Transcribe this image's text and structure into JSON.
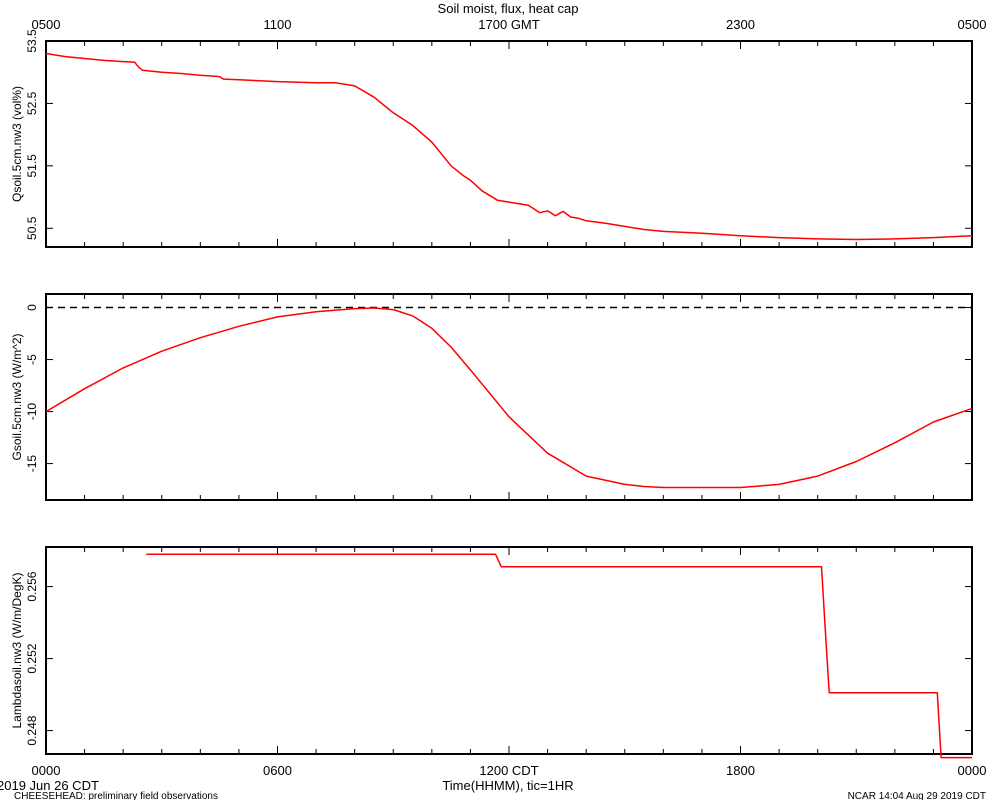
{
  "figure": {
    "title": "Soil moist, flux, heat cap",
    "top_ticks": [
      "0500",
      "1100",
      "1700 GMT",
      "2300",
      "0500"
    ],
    "bottom_ticks": [
      "0000",
      "0600",
      "1200 CDT",
      "1800",
      "0000"
    ],
    "xlabel": "Time(HHMM), tic=1HR",
    "date_label": "2019 Jun 26 CDT",
    "footer_left": "CHEESEHEAD: preliminary field observations",
    "footer_right": "NCAR 14:04 Aug 29 2019 CDT",
    "line_color": "#ff0000",
    "zero_line_color": "#000000"
  },
  "chart_data": [
    {
      "type": "line",
      "ylabel": "Qsoil.5cm.nw3 (vol%)",
      "x_unit": "hours since 0000 CDT",
      "xlim": [
        0,
        24
      ],
      "ylim": [
        50.2,
        53.5
      ],
      "yticks": [
        "50.5",
        "51.5",
        "52.5",
        "53.5"
      ],
      "series": [
        {
          "x": [
            0,
            0.2,
            0.5,
            1,
            1.5,
            2,
            2.3,
            2.4,
            2.5,
            3,
            3.5,
            4,
            4.5,
            4.6,
            5,
            6,
            7,
            7.5,
            8,
            8.5,
            9,
            9.5,
            10,
            10.5,
            10.8,
            11,
            11.3,
            11.7,
            12,
            12.5,
            12.8,
            13,
            13.2,
            13.4,
            13.6,
            13.8,
            14,
            14.5,
            15,
            15.5,
            16,
            17,
            18,
            19,
            20,
            21,
            22,
            23,
            24
          ],
          "values": [
            53.3,
            53.28,
            53.25,
            53.22,
            53.19,
            53.17,
            53.16,
            53.08,
            53.03,
            53.0,
            52.98,
            52.95,
            52.93,
            52.89,
            52.88,
            52.85,
            52.83,
            52.83,
            52.78,
            52.6,
            52.35,
            52.15,
            51.88,
            51.5,
            51.35,
            51.27,
            51.1,
            50.95,
            50.92,
            50.87,
            50.75,
            50.78,
            50.7,
            50.77,
            50.68,
            50.66,
            50.62,
            50.58,
            50.53,
            50.48,
            50.45,
            50.42,
            50.38,
            50.35,
            50.33,
            50.32,
            50.33,
            50.35,
            50.38
          ]
        }
      ]
    },
    {
      "type": "line",
      "ylabel": "Gsoil.5cm.nw3 (W/m^2)",
      "x_unit": "hours since 0000 CDT",
      "xlim": [
        0,
        24
      ],
      "ylim": [
        -18.5,
        1.3
      ],
      "yticks": [
        "0",
        "-5",
        "-10",
        "-15"
      ],
      "reference_line": 0,
      "series": [
        {
          "x": [
            0,
            1,
            2,
            3,
            4,
            5,
            6,
            7,
            8,
            8.5,
            9,
            9.5,
            10,
            10.5,
            11,
            12,
            13,
            14,
            15,
            15.5,
            16,
            17,
            18,
            19,
            20,
            21,
            22,
            23,
            24
          ],
          "values": [
            -10.0,
            -7.8,
            -5.8,
            -4.2,
            -2.9,
            -1.8,
            -0.9,
            -0.4,
            -0.1,
            -0.05,
            -0.2,
            -0.8,
            -2.0,
            -3.8,
            -6.0,
            -10.5,
            -14.0,
            -16.2,
            -17.0,
            -17.2,
            -17.3,
            -17.3,
            -17.3,
            -17.0,
            -16.2,
            -14.8,
            -13.0,
            -11.0,
            -9.7
          ]
        }
      ]
    },
    {
      "type": "line",
      "ylabel": "Lambdasoil.nw3 (W/m/DegK)",
      "x_unit": "hours since 0000 CDT",
      "xlim": [
        0,
        24
      ],
      "ylim": [
        0.2467,
        0.2582
      ],
      "yticks": [
        "0.248",
        "0.252",
        "0.256"
      ],
      "series": [
        {
          "x": [
            2.6,
            11.65,
            11.8,
            20.1,
            20.2,
            20.3,
            23.1,
            23.2,
            24
          ],
          "values": [
            0.2578,
            0.2578,
            0.2571,
            0.2571,
            0.2535,
            0.2501,
            0.2501,
            0.2465,
            0.2465
          ]
        }
      ]
    }
  ]
}
